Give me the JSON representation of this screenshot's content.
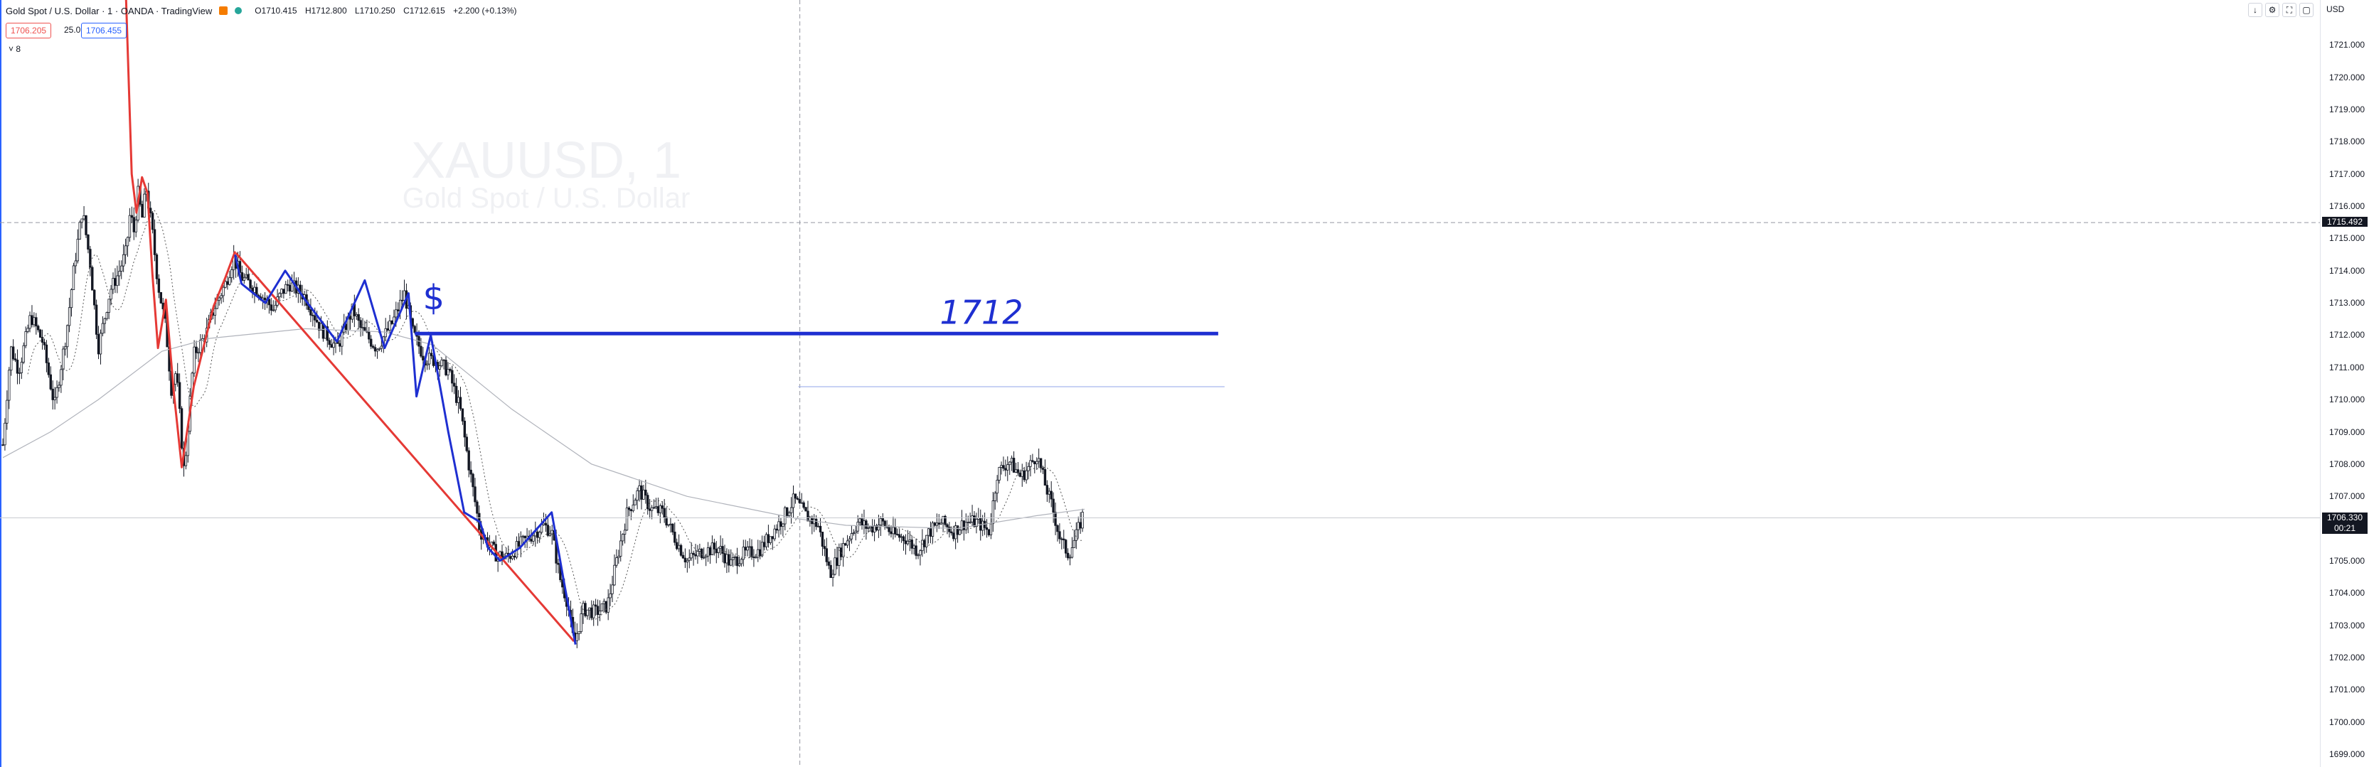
{
  "header": {
    "title": "Gold Spot / U.S. Dollar · 1 · OANDA · TradingView",
    "ohlc": {
      "open": "O1710.415",
      "high": "H1712.800",
      "low": "L1710.250",
      "close": "C1712.615",
      "change": "+2.200 (+0.13%)"
    }
  },
  "trade": {
    "sell": "1706.205",
    "spread": "25.0",
    "buy": "1706.455"
  },
  "indicators_toggle": "˅ 8",
  "watermark": {
    "symbol": "XAUUSD, 1",
    "name": "Gold Spot / U.S. Dollar"
  },
  "annotations": {
    "handwritten_level": "1712",
    "dollar_mark": "$"
  },
  "axis": {
    "currency": "USD",
    "ticks": [
      "1721.000",
      "1720.000",
      "1719.000",
      "1718.000",
      "1717.000",
      "1716.000",
      "1715.000",
      "1714.000",
      "1713.000",
      "1712.000",
      "1711.000",
      "1710.000",
      "1709.000",
      "1708.000",
      "1707.000",
      "1706.000",
      "1705.000",
      "1704.000",
      "1703.000",
      "1702.000",
      "1701.000",
      "1700.000",
      "1699.000"
    ],
    "crosshair_price": "1715.492",
    "last_price": "1706.330",
    "countdown": "00:21"
  },
  "toolbar": {
    "icons": [
      "arrow-down-icon",
      "settings-icon",
      "fullscreen-icon",
      "snapshot-icon"
    ]
  },
  "colors": {
    "bull": "#131722",
    "bear": "#131722",
    "red_drawing": "#e53935",
    "blue_drawing": "#1e2fd1",
    "ma_light": "#b0b3bb"
  },
  "chart_data": {
    "type": "candlestick",
    "ylim": [
      1698.6,
      1722.4
    ],
    "n_candles": 520,
    "price_path": [
      [
        0,
        1708.6
      ],
      [
        10,
        1711.6
      ],
      [
        20,
        1710.9
      ],
      [
        35,
        1712.6
      ],
      [
        50,
        1711.8
      ],
      [
        65,
        1709.8
      ],
      [
        80,
        1712.1
      ],
      [
        90,
        1714.2
      ],
      [
        100,
        1715.9
      ],
      [
        110,
        1714.2
      ],
      [
        120,
        1711.6
      ],
      [
        135,
        1713.4
      ],
      [
        145,
        1713.9
      ],
      [
        155,
        1714.6
      ],
      [
        160,
        1715.8
      ],
      [
        165,
        1715.2
      ],
      [
        170,
        1716.4
      ],
      [
        175,
        1715.6
      ],
      [
        180,
        1716.6
      ],
      [
        188,
        1715.2
      ],
      [
        195,
        1713.6
      ],
      [
        205,
        1712.2
      ],
      [
        212,
        1710.3
      ],
      [
        218,
        1710.9
      ],
      [
        228,
        1707.7
      ],
      [
        240,
        1711.4
      ],
      [
        255,
        1712.0
      ],
      [
        265,
        1712.8
      ],
      [
        280,
        1713.6
      ],
      [
        290,
        1714.4
      ],
      [
        300,
        1713.8
      ],
      [
        320,
        1713.4
      ],
      [
        340,
        1712.8
      ],
      [
        350,
        1713.3
      ],
      [
        360,
        1713.6
      ],
      [
        380,
        1713.2
      ],
      [
        400,
        1712.2
      ],
      [
        420,
        1711.6
      ],
      [
        440,
        1712.8
      ],
      [
        450,
        1712.2
      ],
      [
        470,
        1711.6
      ],
      [
        490,
        1712.4
      ],
      [
        505,
        1713.3
      ],
      [
        515,
        1712.1
      ],
      [
        530,
        1711.3
      ],
      [
        545,
        1711.2
      ],
      [
        560,
        1710.9
      ],
      [
        575,
        1709.7
      ],
      [
        585,
        1708.1
      ],
      [
        600,
        1705.9
      ],
      [
        620,
        1705.2
      ],
      [
        635,
        1705.1
      ],
      [
        650,
        1705.5
      ],
      [
        665,
        1705.8
      ],
      [
        680,
        1706.1
      ],
      [
        690,
        1705.9
      ],
      [
        700,
        1704.5
      ],
      [
        710,
        1703.7
      ],
      [
        718,
        1702.4
      ],
      [
        730,
        1703.5
      ],
      [
        745,
        1703.4
      ],
      [
        760,
        1703.6
      ],
      [
        775,
        1705.4
      ],
      [
        785,
        1706.5
      ],
      [
        800,
        1707.2
      ],
      [
        815,
        1706.6
      ],
      [
        830,
        1706.5
      ],
      [
        845,
        1705.7
      ],
      [
        860,
        1705.0
      ],
      [
        880,
        1705.3
      ],
      [
        900,
        1705.4
      ],
      [
        915,
        1704.9
      ],
      [
        930,
        1705.2
      ],
      [
        950,
        1705.3
      ],
      [
        965,
        1705.8
      ],
      [
        980,
        1706.3
      ],
      [
        995,
        1706.9
      ],
      [
        1010,
        1706.4
      ],
      [
        1025,
        1706.1
      ],
      [
        1040,
        1704.6
      ],
      [
        1055,
        1705.4
      ],
      [
        1075,
        1706.2
      ],
      [
        1090,
        1706.0
      ],
      [
        1105,
        1706.2
      ],
      [
        1120,
        1705.8
      ],
      [
        1135,
        1705.7
      ],
      [
        1150,
        1705.3
      ],
      [
        1165,
        1705.9
      ],
      [
        1180,
        1706.2
      ],
      [
        1195,
        1705.9
      ],
      [
        1210,
        1706.2
      ],
      [
        1225,
        1706.2
      ],
      [
        1240,
        1705.9
      ],
      [
        1250,
        1707.7
      ],
      [
        1265,
        1708.1
      ],
      [
        1280,
        1707.6
      ],
      [
        1290,
        1707.9
      ],
      [
        1300,
        1708.3
      ],
      [
        1310,
        1707.4
      ],
      [
        1320,
        1706.6
      ],
      [
        1330,
        1705.6
      ],
      [
        1340,
        1705.2
      ],
      [
        1350,
        1705.8
      ],
      [
        1360,
        1706.6
      ]
    ],
    "ma_slow_path": [
      [
        0,
        1708.2
      ],
      [
        60,
        1709.0
      ],
      [
        120,
        1710.0
      ],
      [
        200,
        1711.5
      ],
      [
        260,
        1711.9
      ],
      [
        380,
        1712.2
      ],
      [
        480,
        1712.1
      ],
      [
        540,
        1711.7
      ],
      [
        640,
        1709.7
      ],
      [
        740,
        1708.0
      ],
      [
        860,
        1707.0
      ],
      [
        1000,
        1706.3
      ],
      [
        1060,
        1706.1
      ],
      [
        1200,
        1706.0
      ],
      [
        1300,
        1706.4
      ],
      [
        1360,
        1706.6
      ]
    ],
    "horizontal_levels": [
      {
        "name": "drawn-level-1712",
        "value": 1712.05,
        "x_start": 518,
        "x_end": 1528
      },
      {
        "name": "light-level",
        "value": 1710.4,
        "x_start": 1000,
        "x_end": 1536
      }
    ],
    "red_trendline": [
      [
        293,
        1714.55
      ],
      [
        718,
        1702.5
      ]
    ],
    "red_swing": [
      [
        155,
        1722.4
      ],
      [
        162,
        1717.0
      ],
      [
        168,
        1715.8
      ],
      [
        175,
        1716.9
      ],
      [
        182,
        1716.4
      ],
      [
        188,
        1713.9
      ],
      [
        195,
        1711.6
      ],
      [
        205,
        1713.1
      ],
      [
        215,
        1710.2
      ],
      [
        225,
        1707.9
      ],
      [
        240,
        1710.4
      ],
      [
        265,
        1712.9
      ],
      [
        280,
        1713.8
      ],
      [
        292,
        1714.6
      ]
    ],
    "blue_zigzag": [
      [
        292,
        1714.5
      ],
      [
        300,
        1713.6
      ],
      [
        315,
        1713.3
      ],
      [
        330,
        1713.0
      ],
      [
        355,
        1714.0
      ],
      [
        380,
        1713.1
      ],
      [
        420,
        1711.8
      ],
      [
        455,
        1713.7
      ],
      [
        480,
        1711.6
      ],
      [
        510,
        1713.3
      ],
      [
        520,
        1710.1
      ],
      [
        538,
        1712.0
      ],
      [
        560,
        1709.0
      ],
      [
        580,
        1706.5
      ],
      [
        600,
        1706.2
      ],
      [
        610,
        1705.4
      ],
      [
        625,
        1705.0
      ],
      [
        650,
        1705.4
      ],
      [
        690,
        1706.5
      ],
      [
        705,
        1704.4
      ],
      [
        720,
        1702.4
      ]
    ],
    "crosshair": {
      "x": 1002,
      "price": 1715.492
    },
    "last_price_line": 1706.33
  }
}
